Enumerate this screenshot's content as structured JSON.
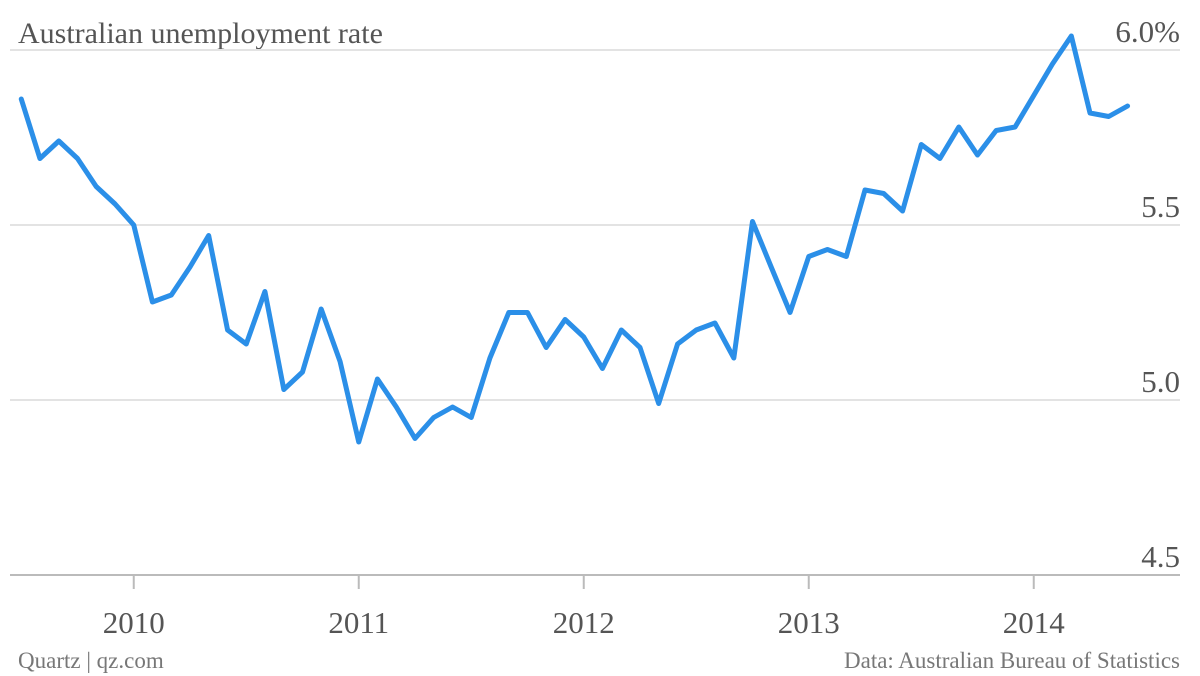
{
  "chart_data": {
    "type": "line",
    "title": "Australian unemployment rate",
    "source": "Data: Australian Bureau of Statistics",
    "credit": "Quartz | qz.com",
    "x": [
      2009.5,
      2009.583,
      2009.667,
      2009.75,
      2009.833,
      2009.917,
      2010,
      2010.083,
      2010.167,
      2010.25,
      2010.333,
      2010.417,
      2010.5,
      2010.583,
      2010.667,
      2010.75,
      2010.833,
      2010.917,
      2011,
      2011.083,
      2011.167,
      2011.25,
      2011.333,
      2011.417,
      2011.5,
      2011.583,
      2011.667,
      2011.75,
      2011.833,
      2011.917,
      2012,
      2012.083,
      2012.167,
      2012.25,
      2012.333,
      2012.417,
      2012.5,
      2012.583,
      2012.667,
      2012.75,
      2012.833,
      2012.917,
      2013,
      2013.083,
      2013.167,
      2013.25,
      2013.333,
      2013.417,
      2013.5,
      2013.583,
      2013.667,
      2013.75,
      2013.833,
      2013.917,
      2014,
      2014.083,
      2014.167,
      2014.25,
      2014.333,
      2014.417
    ],
    "series": [
      {
        "color": "#2b8fe8",
        "values": [
          5.86,
          5.69,
          5.74,
          5.69,
          5.61,
          5.56,
          5.5,
          5.28,
          5.3,
          5.38,
          5.47,
          5.2,
          5.16,
          5.31,
          5.03,
          5.08,
          5.26,
          5.11,
          4.88,
          5.06,
          4.98,
          4.89,
          4.95,
          4.98,
          4.95,
          5.12,
          5.25,
          5.25,
          5.15,
          5.23,
          5.18,
          5.09,
          5.2,
          5.15,
          4.99,
          5.16,
          5.2,
          5.22,
          5.12,
          5.51,
          5.38,
          5.25,
          5.41,
          5.43,
          5.41,
          5.6,
          5.59,
          5.54,
          5.73,
          5.69,
          5.78,
          5.7,
          5.77,
          5.78,
          5.87,
          5.96,
          6.04,
          5.82,
          5.81,
          5.84
        ]
      }
    ],
    "xlim": [
      2009.45,
      2014.65
    ],
    "xticks": [
      2010,
      2011,
      2012,
      2013,
      2014
    ],
    "ylim": [
      4.5,
      6.1
    ],
    "yticks": [
      4.5,
      {
        "value": 5,
        "label": "5.0"
      },
      5.5,
      {
        "value": 6,
        "label": "6.0%"
      }
    ],
    "grid": true
  }
}
